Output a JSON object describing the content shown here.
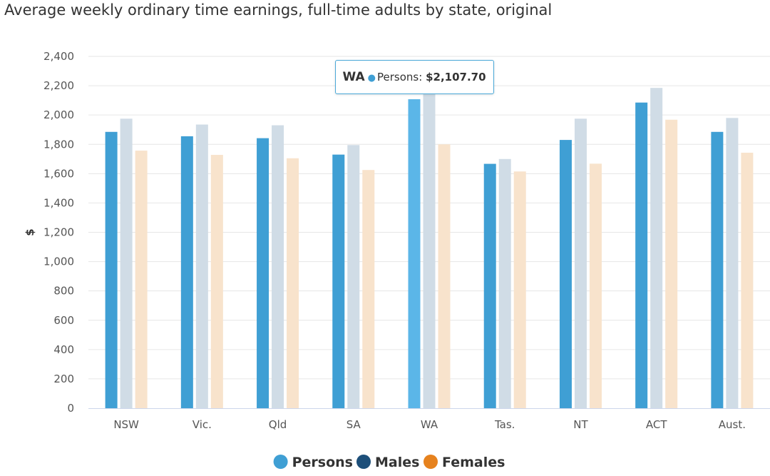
{
  "chart_data": {
    "type": "bar",
    "title": "Average weekly ordinary time earnings, full-time adults by state, original",
    "ylabel": "$",
    "xlabel": "",
    "ylim": [
      0,
      2400
    ],
    "yticks": [
      0,
      200,
      400,
      600,
      800,
      1000,
      1200,
      1400,
      1600,
      1800,
      2000,
      2200,
      2400
    ],
    "ytick_labels": [
      "0",
      "200",
      "400",
      "600",
      "800",
      "1,000",
      "1,200",
      "1,400",
      "1,600",
      "1,800",
      "2,000",
      "2,200",
      "2,400"
    ],
    "grid": true,
    "legend_position": "bottom-center",
    "categories": [
      "NSW",
      "Vic.",
      "Qld",
      "SA",
      "WA",
      "Tas.",
      "NT",
      "ACT",
      "Aust."
    ],
    "series": [
      {
        "name": "Persons",
        "legend_color": "#3f9fd4",
        "bar_color": "#3f9fd4",
        "values": [
          1885,
          1855,
          1842,
          1730,
          2107.7,
          1667,
          1830,
          2085,
          1885
        ]
      },
      {
        "name": "Males",
        "legend_color": "#1d4f7a",
        "bar_color": "#d0dce6",
        "values": [
          1975,
          1935,
          1930,
          1795,
          2185,
          1700,
          1975,
          2185,
          1980
        ]
      },
      {
        "name": "Females",
        "legend_color": "#e6821e",
        "bar_color": "#f8e3cc",
        "values": [
          1757,
          1728,
          1705,
          1625,
          1800,
          1615,
          1668,
          1968,
          1743
        ]
      }
    ],
    "highlight": {
      "category_index": 4,
      "series_index": 0,
      "color": "#5bb6e8"
    },
    "tooltip": {
      "category": "WA",
      "series": "Persons",
      "value_text": "$2,107.70",
      "bullet": "●"
    }
  }
}
